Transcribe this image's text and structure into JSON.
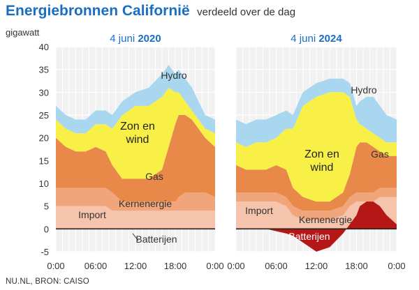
{
  "header": {
    "title": "Energiebronnen Californië",
    "subtitle": "verdeeld over de dag"
  },
  "source": "NU.NL, BRON: CAISO",
  "colors": {
    "Import": "#f6c3ad",
    "Kernenergie": "#f0a57a",
    "Gas": "#e8894a",
    "Zon en wind": "#f8f047",
    "Hydro": "#a8d7ef",
    "Batterijen": "#b51716",
    "title": "#1a6ec2"
  },
  "chart_data": [
    {
      "type": "area",
      "stacked": true,
      "title_prefix": "4 juni",
      "title_year": "2020",
      "ylabel": "gigawatt",
      "ylim": [
        -5,
        40
      ],
      "yticks": [
        40,
        35,
        30,
        25,
        20,
        15,
        10,
        5,
        0,
        -5
      ],
      "xticks": [
        "0:00",
        "06:00",
        "12:00",
        "18:00",
        "0:00"
      ],
      "x": [
        0,
        1.5,
        3,
        4.5,
        6,
        7.5,
        8.5,
        10,
        12,
        14,
        16,
        17,
        18,
        18.5,
        19.5,
        20.5,
        21.5,
        22.5,
        24
      ],
      "series": [
        {
          "name": "Import",
          "label": "Import",
          "values": [
            5,
            5,
            5,
            5,
            5,
            5,
            4,
            4,
            4,
            4,
            4,
            4,
            4,
            4,
            4,
            4,
            4,
            4,
            4
          ]
        },
        {
          "name": "Kernenergie",
          "label": "Kernenergie",
          "values": [
            4,
            4,
            4,
            4,
            4,
            4,
            4,
            2,
            2,
            2,
            2,
            2,
            2,
            3,
            4,
            4,
            4,
            4,
            3
          ]
        },
        {
          "name": "Gas",
          "label": "Gas",
          "values": [
            11,
            9,
            8,
            8,
            9,
            8,
            6,
            5,
            5,
            5,
            7,
            12,
            17,
            18,
            17,
            16,
            14,
            12,
            11
          ]
        },
        {
          "name": "Zon en wind",
          "label": "Zon en wind",
          "values": [
            4,
            4,
            4,
            4,
            5,
            6,
            8,
            14,
            16,
            16,
            16,
            13,
            7,
            5,
            3,
            2,
            2,
            2,
            3
          ]
        },
        {
          "name": "Hydro",
          "label": "Hydro",
          "values": [
            3,
            3,
            3,
            3,
            3,
            3,
            3,
            3,
            3,
            4,
            5,
            5,
            4,
            5,
            5,
            5,
            4,
            3,
            3
          ]
        }
      ],
      "battery": {
        "name": "Batterijen",
        "label": "Batterijen",
        "values": [
          0,
          0,
          0,
          0,
          0,
          0,
          0,
          0,
          0,
          0,
          0,
          0,
          0,
          0,
          0,
          0,
          0,
          0,
          0
        ]
      }
    },
    {
      "type": "area",
      "stacked": true,
      "title_prefix": "4 juni",
      "title_year": "2024",
      "ylim": [
        -5,
        40
      ],
      "xticks": [
        "0:00",
        "06:00",
        "12:00",
        "18:00",
        "0:00"
      ],
      "x": [
        0,
        1.5,
        3,
        4.5,
        6,
        7.5,
        8.5,
        10,
        12,
        14,
        16,
        17,
        18,
        18.5,
        19.5,
        20.5,
        21.5,
        22.5,
        24
      ],
      "series": [
        {
          "name": "Import",
          "label": "Import",
          "values": [
            6,
            6,
            6,
            6,
            6,
            5,
            3,
            2,
            2,
            2,
            3,
            5,
            6,
            6,
            6,
            6,
            7,
            7,
            7
          ]
        },
        {
          "name": "Kernenergie",
          "label": "Kernenergie",
          "values": [
            2,
            2,
            2,
            2,
            2,
            2,
            2,
            2,
            2,
            2,
            2,
            2,
            2,
            2,
            2,
            2,
            2,
            2,
            2
          ]
        },
        {
          "name": "Gas",
          "label": "Gas",
          "values": [
            6,
            5,
            5,
            5,
            6,
            6,
            4,
            3,
            2,
            2,
            3,
            5,
            10,
            11,
            11,
            10,
            8,
            7,
            7
          ]
        },
        {
          "name": "Zon en wind",
          "label": "Zon en wind",
          "values": [
            5,
            5,
            6,
            6,
            6,
            9,
            13,
            20,
            23,
            24,
            22,
            17,
            6,
            4,
            3,
            3,
            3,
            3,
            3
          ]
        },
        {
          "name": "Hydro",
          "label": "Hydro",
          "values": [
            5,
            5,
            5,
            5,
            5,
            4,
            3,
            3,
            3,
            3,
            3,
            3,
            3,
            5,
            7,
            8,
            7,
            6,
            5
          ]
        }
      ],
      "battery": {
        "name": "Batterijen",
        "label": "Batterijen",
        "values": [
          0,
          0,
          0,
          0,
          -0.5,
          -1,
          -1.5,
          -3,
          -5,
          -4,
          -1,
          1,
          3,
          5,
          6,
          6,
          5,
          3,
          1
        ]
      }
    }
  ]
}
